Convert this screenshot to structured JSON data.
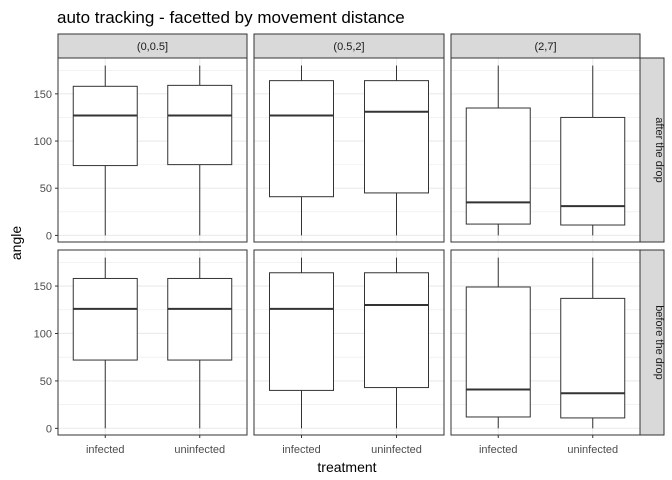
{
  "chart_data": {
    "type": "boxplot",
    "title": "auto tracking - facetted by movement distance",
    "xlabel": "treatment",
    "ylabel": "angle",
    "categories": [
      "infected",
      "uninfected"
    ],
    "ylim": [
      -7,
      188
    ],
    "yticks": [
      0,
      50,
      100,
      150
    ],
    "column_facets": [
      "(0,0.5]",
      "(0.5,2]",
      "(2,7]"
    ],
    "row_facets": [
      "after the drop",
      "before the drop"
    ],
    "grid": true,
    "panels": [
      {
        "row": "after the drop",
        "col": "(0,0.5]",
        "boxes": [
          {
            "category": "infected",
            "min": 0,
            "q1": 74,
            "median": 127,
            "q3": 158,
            "max": 180
          },
          {
            "category": "uninfected",
            "min": 0,
            "q1": 75,
            "median": 127,
            "q3": 159,
            "max": 180
          }
        ]
      },
      {
        "row": "after the drop",
        "col": "(0.5,2]",
        "boxes": [
          {
            "category": "infected",
            "min": 0,
            "q1": 41,
            "median": 127,
            "q3": 164,
            "max": 180
          },
          {
            "category": "uninfected",
            "min": 0,
            "q1": 45,
            "median": 131,
            "q3": 164,
            "max": 180
          }
        ]
      },
      {
        "row": "after the drop",
        "col": "(2,7]",
        "boxes": [
          {
            "category": "infected",
            "min": 0,
            "q1": 12,
            "median": 35,
            "q3": 135,
            "max": 180
          },
          {
            "category": "uninfected",
            "min": 0,
            "q1": 11,
            "median": 31,
            "q3": 125,
            "max": 180
          }
        ]
      },
      {
        "row": "before the drop",
        "col": "(0,0.5]",
        "boxes": [
          {
            "category": "infected",
            "min": 0,
            "q1": 72,
            "median": 126,
            "q3": 158,
            "max": 180
          },
          {
            "category": "uninfected",
            "min": 0,
            "q1": 72,
            "median": 126,
            "q3": 158,
            "max": 180
          }
        ]
      },
      {
        "row": "before the drop",
        "col": "(0.5,2]",
        "boxes": [
          {
            "category": "infected",
            "min": 0,
            "q1": 40,
            "median": 126,
            "q3": 164,
            "max": 180
          },
          {
            "category": "uninfected",
            "min": 0,
            "q1": 43,
            "median": 130,
            "q3": 164,
            "max": 180
          }
        ]
      },
      {
        "row": "before the drop",
        "col": "(2,7]",
        "boxes": [
          {
            "category": "infected",
            "min": 0,
            "q1": 12,
            "median": 41,
            "q3": 149,
            "max": 180
          },
          {
            "category": "uninfected",
            "min": 0,
            "q1": 11,
            "median": 37,
            "q3": 137,
            "max": 180
          }
        ]
      }
    ],
    "colors": {
      "box_fill": "#ffffff",
      "box_line": "#333333",
      "strip_fill": "#d9d9d9",
      "panel_border": "#333333",
      "grid": "#ebebeb"
    }
  }
}
